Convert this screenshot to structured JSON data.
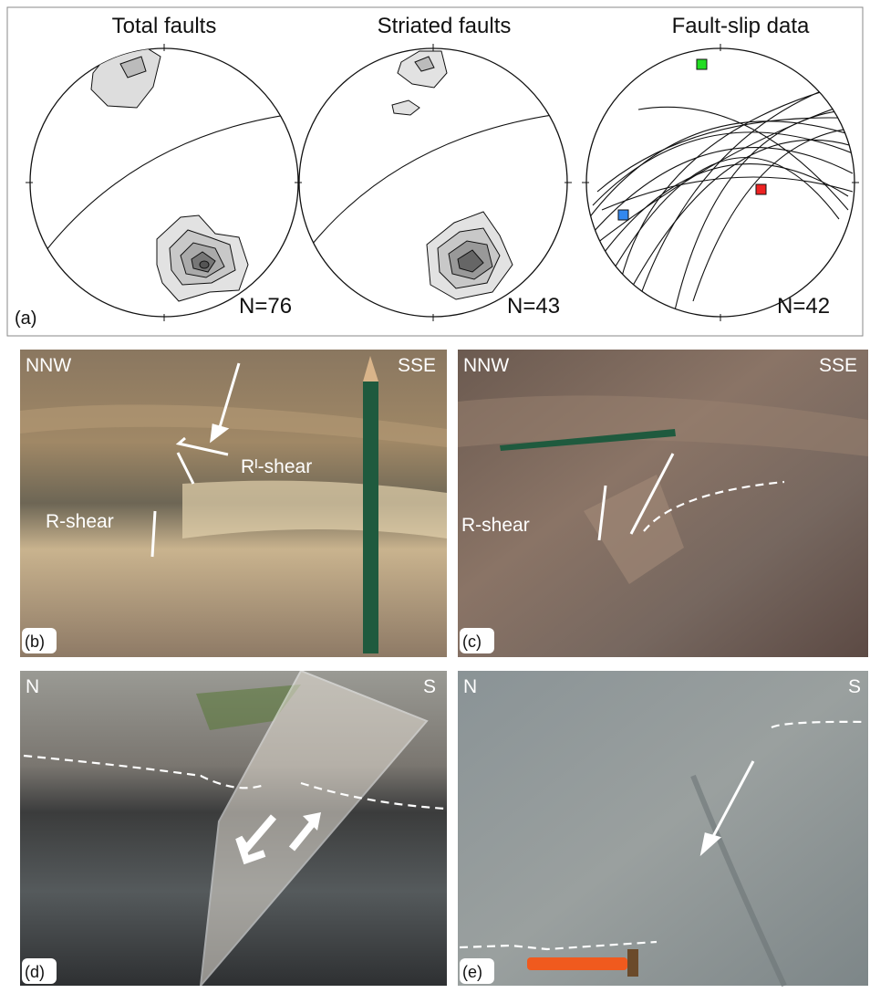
{
  "panel_a": {
    "label": "(a)",
    "stereonets": [
      {
        "title": "Total faults",
        "count": "N=76"
      },
      {
        "title": "Striated faults",
        "count": "N=43"
      },
      {
        "title": "Fault-slip data",
        "count": "N=42"
      }
    ]
  },
  "photos": [
    {
      "label": "(b)",
      "left": "NNW",
      "right": "SSE",
      "annotations": [
        "R-shear",
        "Rᴵ-shear"
      ]
    },
    {
      "label": "(c)",
      "left": "NNW",
      "right": "SSE",
      "annotations": [
        "R-shear"
      ]
    },
    {
      "label": "(d)",
      "left": "N",
      "right": "S"
    },
    {
      "label": "(e)",
      "left": "N",
      "right": "S"
    }
  ]
}
